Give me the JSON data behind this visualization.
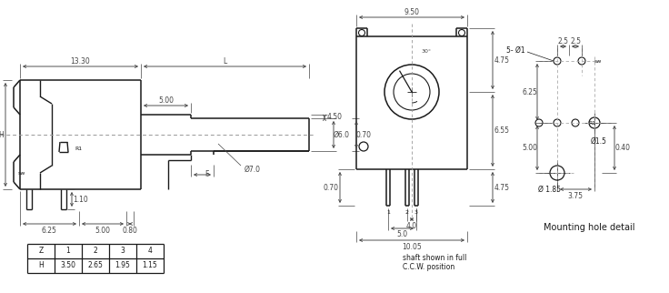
{
  "bg_color": "#ffffff",
  "line_color": "#1a1a1a",
  "dim_color": "#444444",
  "font_size": 5.5,
  "font_size_large": 7.0,
  "table_Z": [
    "Z",
    "1",
    "2",
    "3",
    "4"
  ],
  "table_H": [
    "H",
    "3.50",
    "2.65",
    "1.95",
    "1.15"
  ],
  "note_line1": "shaft shown in full",
  "note_line2": "C.C.W. position",
  "mounting_label": "Mounting hole detail"
}
